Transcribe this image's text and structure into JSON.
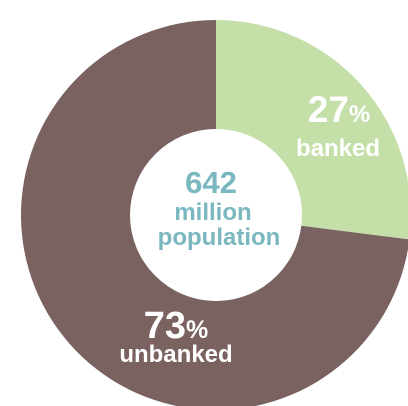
{
  "chart_data": {
    "type": "pie",
    "donut": true,
    "center_label": {
      "value": "642",
      "line1": "million",
      "line2": "population"
    },
    "slices": [
      {
        "label": "banked",
        "value": 27,
        "value_text": "27",
        "unit": "%",
        "color": "#c5dfa9",
        "text_color": "#ffffff"
      },
      {
        "label": "unbanked",
        "value": 73,
        "value_text": "73",
        "unit": "%",
        "color": "#7a6261",
        "text_color": "#ffffff"
      }
    ],
    "center_text_color": "#7ab7bf",
    "start_angle_deg": 0,
    "direction": "clockwise"
  }
}
